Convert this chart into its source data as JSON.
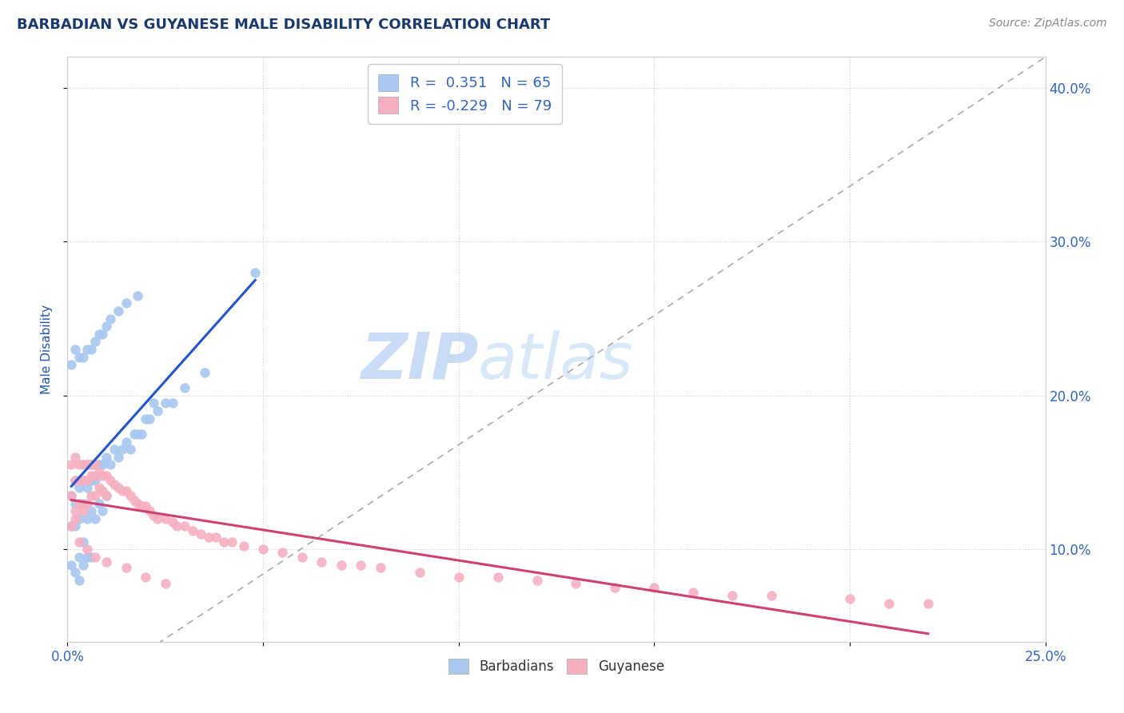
{
  "title": "BARBADIAN VS GUYANESE MALE DISABILITY CORRELATION CHART",
  "source": "Source: ZipAtlas.com",
  "ylabel": "Male Disability",
  "xlim": [
    0.0,
    0.25
  ],
  "ylim": [
    0.04,
    0.42
  ],
  "R_barbadian": 0.351,
  "N_barbadian": 65,
  "R_guyanese": -0.229,
  "N_guyanese": 79,
  "blue_color": "#a8c8f0",
  "pink_color": "#f5b0c0",
  "blue_line_color": "#2255cc",
  "pink_line_color": "#d04070",
  "diagonal_color": "#aaaaaa",
  "title_color": "#1a3a6b",
  "axis_label_color": "#2255aa",
  "tick_color": "#3366bb",
  "background_color": "#ffffff",
  "watermark_text": "ZIP",
  "watermark_text2": "atlas",
  "barbadian_x": [
    0.001,
    0.001,
    0.001,
    0.002,
    0.002,
    0.002,
    0.002,
    0.003,
    0.003,
    0.003,
    0.003,
    0.003,
    0.004,
    0.004,
    0.004,
    0.004,
    0.005,
    0.005,
    0.005,
    0.005,
    0.006,
    0.006,
    0.006,
    0.006,
    0.007,
    0.007,
    0.007,
    0.008,
    0.008,
    0.009,
    0.009,
    0.01,
    0.01,
    0.011,
    0.012,
    0.013,
    0.014,
    0.015,
    0.016,
    0.017,
    0.018,
    0.019,
    0.02,
    0.021,
    0.022,
    0.023,
    0.025,
    0.027,
    0.03,
    0.035,
    0.001,
    0.002,
    0.003,
    0.004,
    0.005,
    0.006,
    0.007,
    0.008,
    0.009,
    0.01,
    0.011,
    0.013,
    0.015,
    0.018,
    0.048
  ],
  "barbadian_y": [
    0.135,
    0.115,
    0.09,
    0.145,
    0.13,
    0.115,
    0.085,
    0.14,
    0.13,
    0.12,
    0.095,
    0.08,
    0.145,
    0.13,
    0.105,
    0.09,
    0.155,
    0.14,
    0.12,
    0.095,
    0.155,
    0.145,
    0.125,
    0.095,
    0.155,
    0.145,
    0.12,
    0.155,
    0.13,
    0.155,
    0.125,
    0.16,
    0.135,
    0.155,
    0.165,
    0.16,
    0.165,
    0.17,
    0.165,
    0.175,
    0.175,
    0.175,
    0.185,
    0.185,
    0.195,
    0.19,
    0.195,
    0.195,
    0.205,
    0.215,
    0.22,
    0.23,
    0.225,
    0.225,
    0.23,
    0.23,
    0.235,
    0.24,
    0.24,
    0.245,
    0.25,
    0.255,
    0.26,
    0.265,
    0.28
  ],
  "guyanese_x": [
    0.001,
    0.001,
    0.002,
    0.002,
    0.002,
    0.003,
    0.003,
    0.003,
    0.004,
    0.004,
    0.004,
    0.005,
    0.005,
    0.005,
    0.006,
    0.006,
    0.006,
    0.007,
    0.007,
    0.007,
    0.008,
    0.008,
    0.009,
    0.009,
    0.01,
    0.01,
    0.011,
    0.012,
    0.013,
    0.014,
    0.015,
    0.016,
    0.017,
    0.018,
    0.019,
    0.02,
    0.021,
    0.022,
    0.023,
    0.025,
    0.027,
    0.028,
    0.03,
    0.032,
    0.034,
    0.036,
    0.038,
    0.04,
    0.042,
    0.045,
    0.05,
    0.055,
    0.06,
    0.065,
    0.07,
    0.075,
    0.08,
    0.09,
    0.1,
    0.11,
    0.12,
    0.13,
    0.14,
    0.15,
    0.16,
    0.17,
    0.18,
    0.2,
    0.21,
    0.22,
    0.001,
    0.002,
    0.003,
    0.005,
    0.007,
    0.01,
    0.015,
    0.02,
    0.025
  ],
  "guyanese_y": [
    0.155,
    0.135,
    0.16,
    0.145,
    0.125,
    0.155,
    0.145,
    0.13,
    0.155,
    0.145,
    0.125,
    0.155,
    0.145,
    0.13,
    0.155,
    0.148,
    0.135,
    0.155,
    0.148,
    0.135,
    0.15,
    0.14,
    0.148,
    0.138,
    0.148,
    0.135,
    0.145,
    0.142,
    0.14,
    0.138,
    0.138,
    0.135,
    0.132,
    0.13,
    0.128,
    0.128,
    0.125,
    0.122,
    0.12,
    0.12,
    0.118,
    0.115,
    0.115,
    0.112,
    0.11,
    0.108,
    0.108,
    0.105,
    0.105,
    0.102,
    0.1,
    0.098,
    0.095,
    0.092,
    0.09,
    0.09,
    0.088,
    0.085,
    0.082,
    0.082,
    0.08,
    0.078,
    0.075,
    0.075,
    0.072,
    0.07,
    0.07,
    0.068,
    0.065,
    0.065,
    0.115,
    0.12,
    0.105,
    0.1,
    0.095,
    0.092,
    0.088,
    0.082,
    0.078
  ]
}
